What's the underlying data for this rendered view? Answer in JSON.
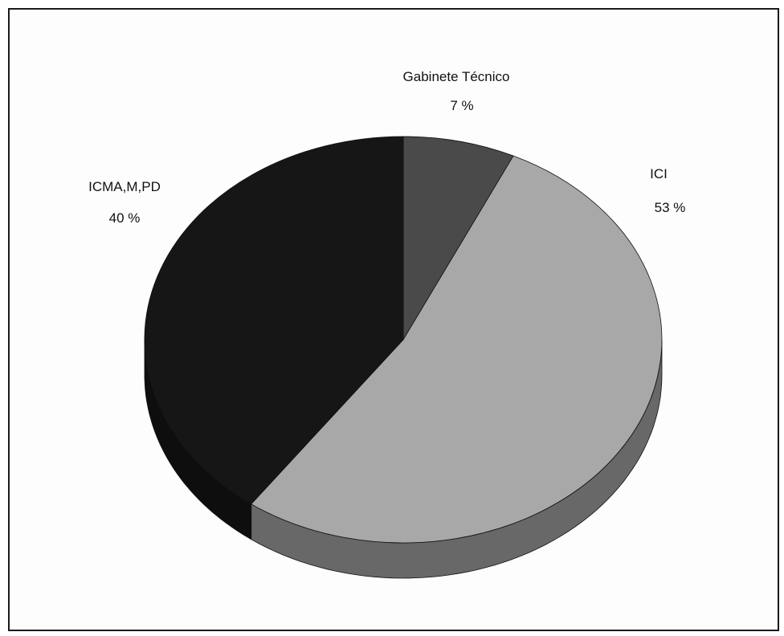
{
  "chart_data": {
    "type": "pie",
    "style": "3d",
    "slices": [
      {
        "label": "Gabinete Técnico",
        "value": 7,
        "value_label": "7 %",
        "color": "#4a4a4a"
      },
      {
        "label": "ICI",
        "value": 53,
        "value_label": "53 %",
        "color": "#a8a8a8"
      },
      {
        "label": "ICMA,M,PD",
        "value": 40,
        "value_label": "40 %",
        "color": "#161616"
      }
    ]
  }
}
